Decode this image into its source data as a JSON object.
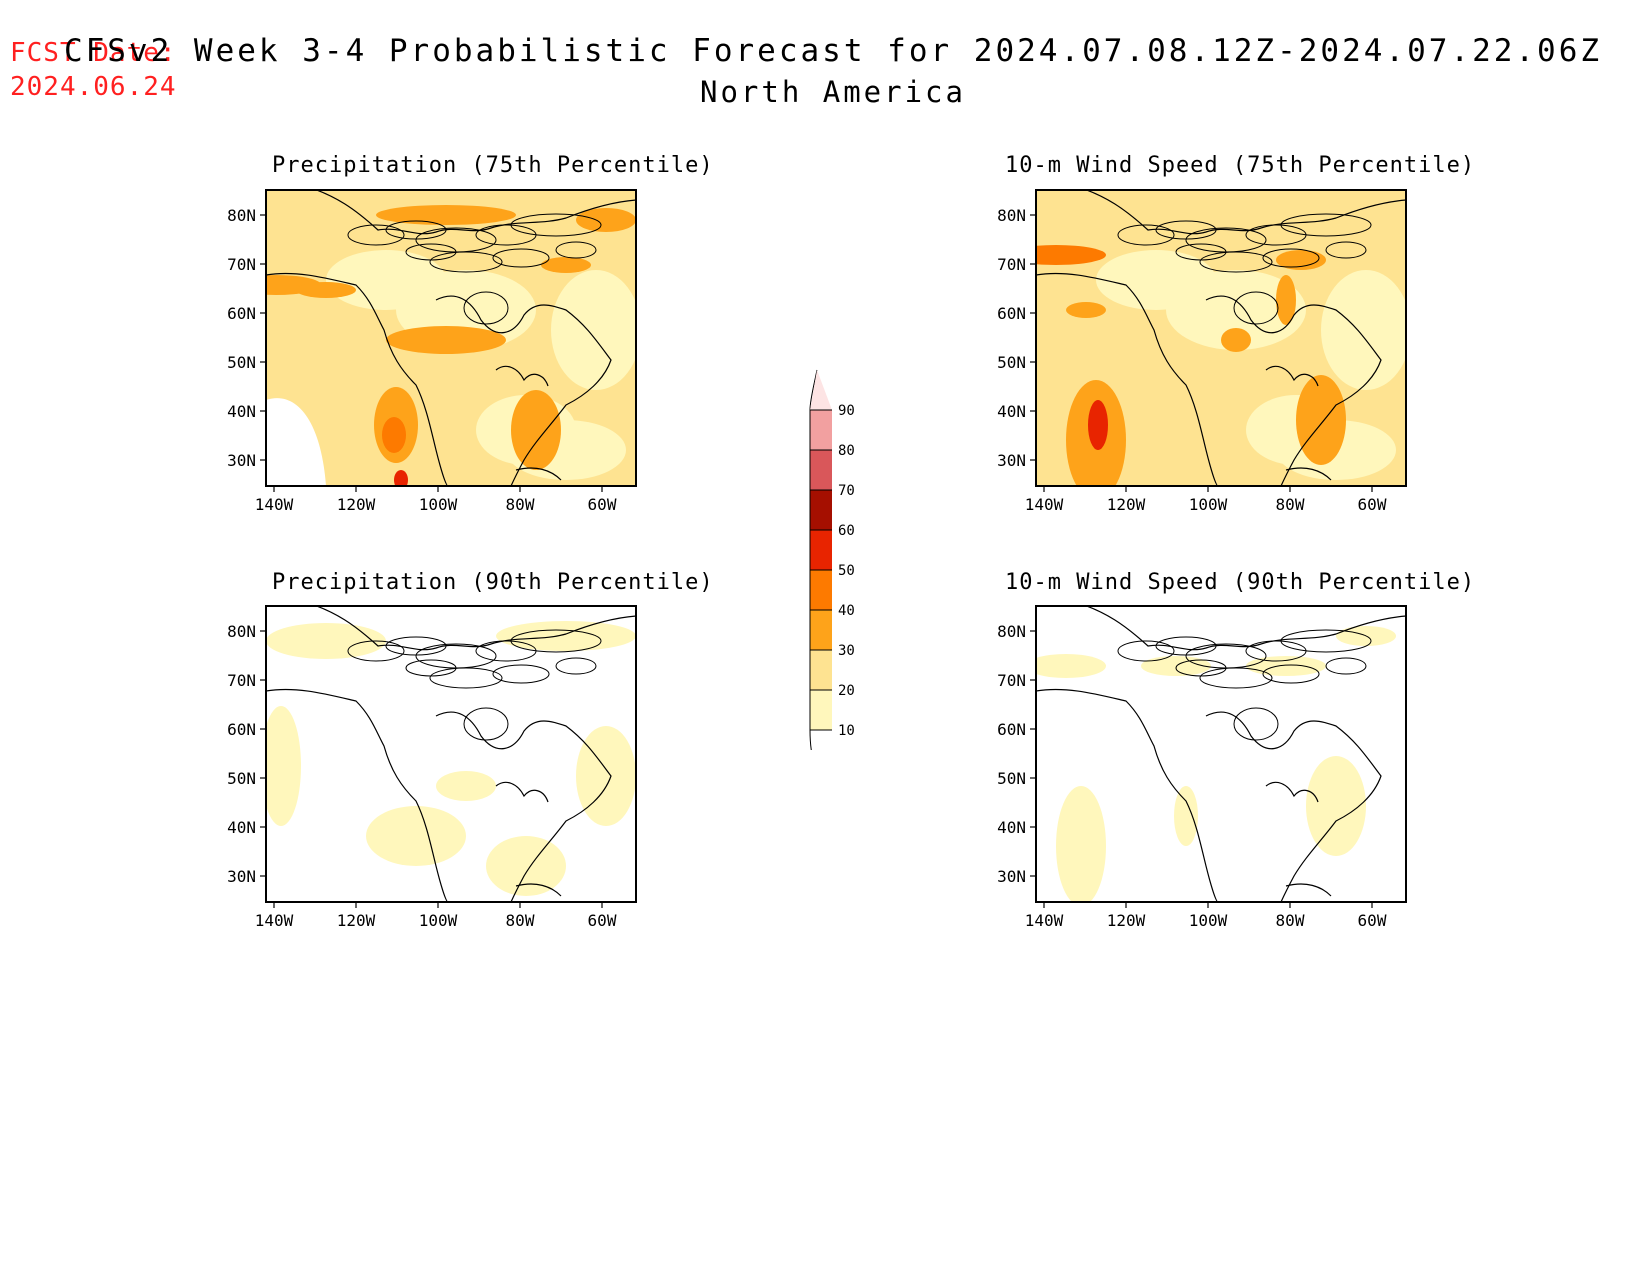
{
  "header": {
    "fcst_label": "FCST Date:",
    "fcst_date": "2024.06.24",
    "title": "CFSv2 Week 3-4 Probabilistic Forecast for 2024.07.08.12Z-2024.07.22.06Z",
    "region": "North America"
  },
  "panels": [
    {
      "id": "precip-75",
      "title": "Precipitation (75th Percentile)",
      "level": "high",
      "hotspots": "sw"
    },
    {
      "id": "wind-75",
      "title": "10-m Wind Speed (75th Percentile)",
      "level": "high",
      "hotspots": "west-coast"
    },
    {
      "id": "precip-90",
      "title": "Precipitation (90th Percentile)",
      "level": "low",
      "hotspots": "scattered"
    },
    {
      "id": "wind-90",
      "title": "10-m Wind Speed (90th Percentile)",
      "level": "low",
      "hotspots": "coastal"
    }
  ],
  "axes": {
    "lon_ticks": [
      "140W",
      "120W",
      "100W",
      "80W",
      "60W"
    ],
    "lat_ticks": [
      "80N",
      "70N",
      "60N",
      "50N",
      "40N",
      "30N"
    ]
  },
  "colorbar": {
    "levels": [
      "10",
      "20",
      "30",
      "40",
      "50",
      "60",
      "70",
      "80",
      "90"
    ],
    "colors": [
      "#fff7bc",
      "#fee391",
      "#fea31a",
      "#fd7a00",
      "#e82400",
      "#a50f00",
      "#d9575a",
      "#f2a0a0",
      "#fde4e4"
    ]
  }
}
